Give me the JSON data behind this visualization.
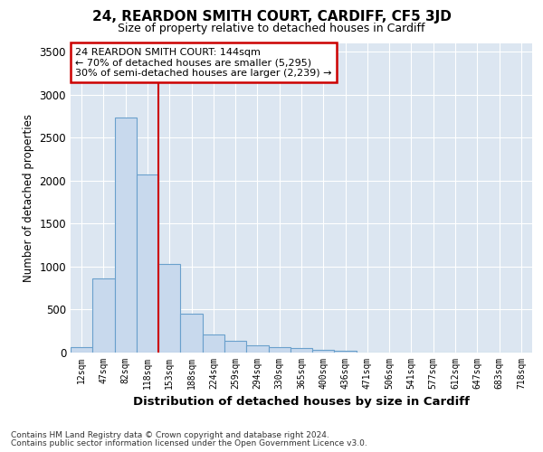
{
  "title": "24, REARDON SMITH COURT, CARDIFF, CF5 3JD",
  "subtitle": "Size of property relative to detached houses in Cardiff",
  "xlabel": "Distribution of detached houses by size in Cardiff",
  "ylabel": "Number of detached properties",
  "footnote1": "Contains HM Land Registry data © Crown copyright and database right 2024.",
  "footnote2": "Contains public sector information licensed under the Open Government Licence v3.0.",
  "annotation_line1": "24 REARDON SMITH COURT: 144sqm",
  "annotation_line2": "← 70% of detached houses are smaller (5,295)",
  "annotation_line3": "30% of semi-detached houses are larger (2,239) →",
  "bar_color": "#c8d9ed",
  "bar_edge_color": "#6aa0cc",
  "marker_line_color": "#cc0000",
  "plot_bg_color": "#dce6f1",
  "categories": [
    "12sqm",
    "47sqm",
    "82sqm",
    "118sqm",
    "153sqm",
    "188sqm",
    "224sqm",
    "259sqm",
    "294sqm",
    "330sqm",
    "365sqm",
    "400sqm",
    "436sqm",
    "471sqm",
    "506sqm",
    "541sqm",
    "577sqm",
    "612sqm",
    "647sqm",
    "683sqm",
    "718sqm"
  ],
  "values": [
    65,
    860,
    2730,
    2070,
    1030,
    450,
    205,
    140,
    80,
    65,
    55,
    35,
    25,
    0,
    0,
    0,
    0,
    0,
    0,
    0,
    0
  ],
  "marker_bar_index": 3,
  "marker_side": "right",
  "ylim": [
    0,
    3600
  ],
  "yticks": [
    0,
    500,
    1000,
    1500,
    2000,
    2500,
    3000,
    3500
  ]
}
